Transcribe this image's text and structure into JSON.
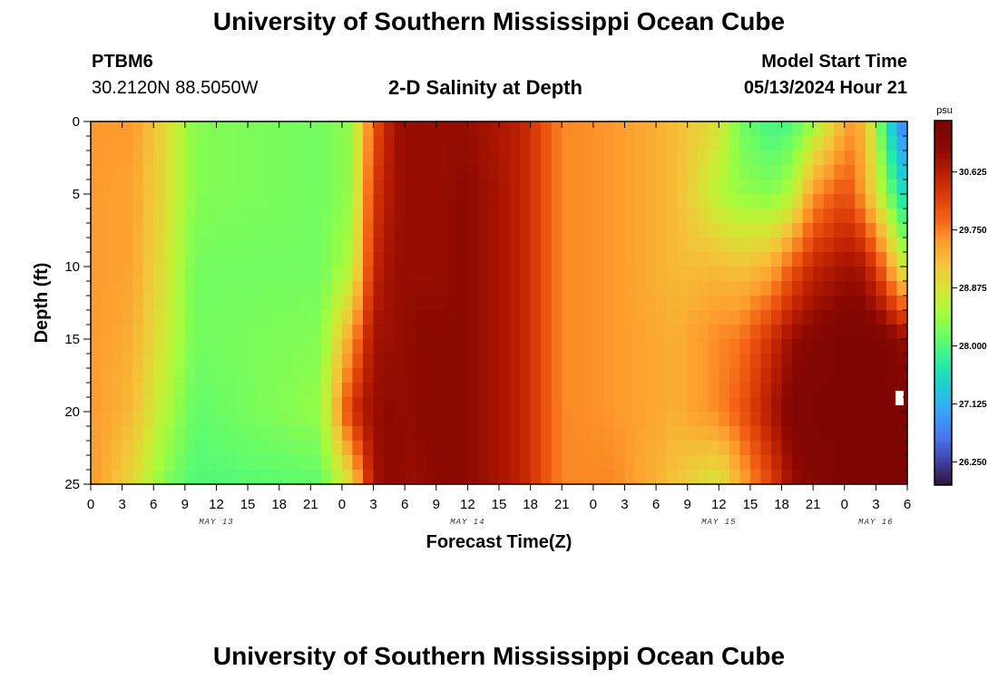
{
  "header": {
    "title": "University of Southern Mississippi Ocean Cube",
    "station_id": "PTBM6",
    "station_coords": "30.2120N  88.5050W",
    "plot_title": "2-D Salinity at Depth",
    "start_label": "Model Start Time",
    "start_value": "05/13/2024 Hour 21"
  },
  "footer": {
    "title": "University of Southern Mississippi Ocean Cube"
  },
  "chart_data": {
    "type": "heatmap",
    "title": "2-D Salinity at Depth",
    "xlabel": "Forecast Time(Z)",
    "ylabel": "Depth (ft)",
    "x_ticks": [
      "0",
      "3",
      "6",
      "9",
      "12",
      "15",
      "18",
      "21",
      "0",
      "3",
      "6",
      "9",
      "12",
      "15",
      "18",
      "21",
      "0",
      "3",
      "6",
      "9",
      "12",
      "15",
      "18",
      "21",
      "0",
      "3",
      "6"
    ],
    "date_labels": [
      {
        "text": "MAY 13",
        "tick_index": 4
      },
      {
        "text": "MAY 14",
        "tick_index": 12
      },
      {
        "text": "MAY 15",
        "tick_index": 20
      },
      {
        "text": "MAY 16",
        "tick_index": 25
      }
    ],
    "x_range_hours": [
      0,
      78
    ],
    "ylim": [
      0,
      25
    ],
    "y_ticks": [
      0,
      5,
      10,
      15,
      20,
      25
    ],
    "colorbar": {
      "unit": "psu",
      "range": [
        25.9,
        31.4
      ],
      "ticks": [
        "30.625",
        "29.750",
        "28.875",
        "28.000",
        "27.125",
        "26.250"
      ]
    },
    "time_hours": [
      0,
      4,
      7,
      10,
      22,
      25,
      27,
      29,
      30,
      31,
      33,
      36,
      41,
      45,
      50,
      56,
      60,
      62,
      65,
      67,
      69,
      72,
      73,
      74,
      75,
      76,
      77,
      78
    ],
    "depths_ft": [
      0,
      5,
      10,
      15,
      20,
      25
    ],
    "salinity_psu": [
      [
        29.6,
        29.6,
        29.6,
        29.6,
        29.6,
        29.6
      ],
      [
        29.6,
        29.5,
        29.5,
        29.4,
        29.3,
        29.0
      ],
      [
        29.0,
        29.0,
        28.9,
        28.8,
        28.6,
        28.3
      ],
      [
        28.3,
        28.3,
        28.2,
        28.2,
        28.1,
        28.0
      ],
      [
        28.2,
        28.2,
        28.2,
        28.3,
        28.4,
        28.1
      ],
      [
        28.4,
        28.4,
        28.6,
        29.6,
        30.4,
        29.0
      ],
      [
        30.0,
        30.3,
        30.5,
        30.8,
        30.9,
        30.8
      ],
      [
        30.8,
        30.8,
        30.9,
        30.9,
        31.0,
        31.0
      ],
      [
        30.9,
        30.9,
        30.9,
        30.9,
        30.9,
        30.9
      ],
      [
        30.9,
        30.9,
        30.9,
        31.0,
        31.0,
        30.9
      ],
      [
        30.9,
        30.9,
        30.9,
        31.0,
        31.0,
        31.0
      ],
      [
        30.9,
        31.0,
        31.0,
        31.0,
        31.0,
        31.0
      ],
      [
        30.6,
        30.6,
        30.6,
        30.6,
        30.6,
        30.6
      ],
      [
        29.7,
        29.7,
        29.7,
        29.7,
        29.7,
        29.7
      ],
      [
        29.6,
        29.6,
        29.6,
        29.6,
        29.6,
        29.7
      ],
      [
        29.3,
        29.3,
        29.3,
        29.4,
        29.4,
        29.2
      ],
      [
        28.9,
        28.6,
        29.3,
        29.7,
        29.7,
        28.8
      ],
      [
        28.2,
        28.4,
        29.2,
        29.8,
        30.0,
        29.4
      ],
      [
        27.9,
        28.3,
        29.4,
        30.4,
        30.7,
        30.2
      ],
      [
        28.0,
        28.6,
        30.0,
        30.9,
        31.2,
        30.9
      ],
      [
        28.4,
        29.6,
        30.5,
        31.1,
        31.3,
        31.1
      ],
      [
        29.4,
        30.1,
        30.8,
        31.3,
        31.3,
        31.3
      ],
      [
        29.6,
        29.9,
        30.8,
        31.3,
        31.3,
        31.3
      ],
      [
        29.2,
        29.4,
        30.7,
        31.3,
        31.3,
        31.3
      ],
      [
        28.6,
        28.9,
        30.2,
        31.3,
        31.3,
        31.3
      ],
      [
        27.6,
        28.3,
        29.8,
        31.2,
        31.3,
        31.3
      ],
      [
        27.1,
        27.8,
        29.0,
        31.0,
        31.3,
        31.3
      ],
      [
        26.5,
        27.4,
        28.7,
        30.9,
        31.3,
        31.3
      ]
    ]
  }
}
